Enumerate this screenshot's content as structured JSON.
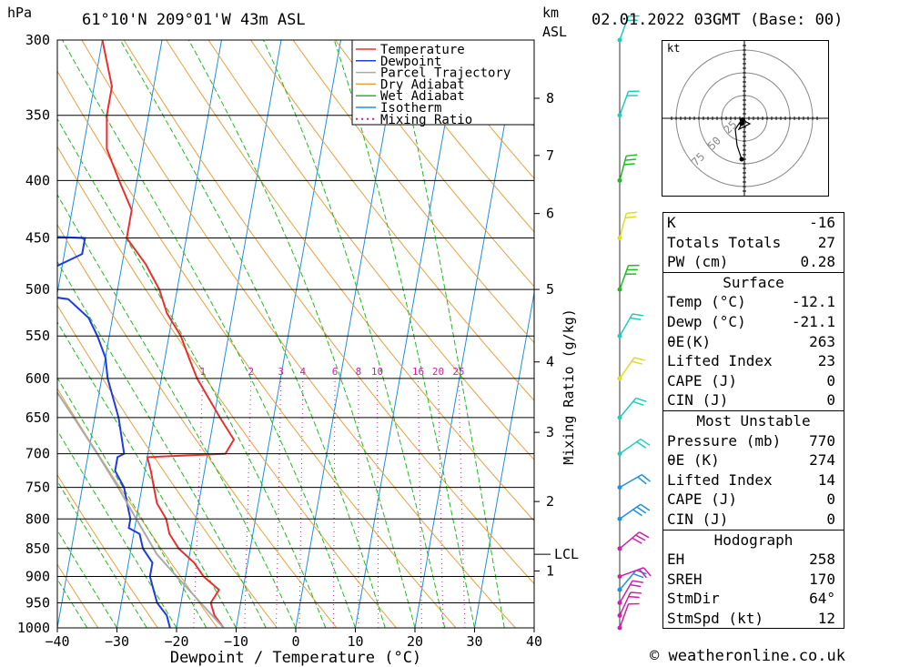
{
  "header": {
    "hpa_label": "hPa",
    "location": "61°10'N  209°01'W  43m  ASL",
    "km_label": "km",
    "asl_label": "ASL",
    "datetime": "02.01.2022  03GMT  (Base: 00)"
  },
  "footer": {
    "copyright": "© weatheronline.co.uk"
  },
  "hodograph": {
    "unit_label": "kt",
    "ring_labels": [
      "25",
      "50",
      "75"
    ]
  },
  "indices": {
    "top": [
      {
        "label": "K",
        "value": "-16"
      },
      {
        "label": "Totals Totals",
        "value": "27"
      },
      {
        "label": "PW (cm)",
        "value": "0.28"
      }
    ],
    "surface": {
      "title": "Surface",
      "rows": [
        {
          "label": "Temp (°C)",
          "value": "-12.1"
        },
        {
          "label": "Dewp (°C)",
          "value": "-21.1"
        },
        {
          "label": "θE(K)",
          "value": "263"
        },
        {
          "label": "Lifted Index",
          "value": "23"
        },
        {
          "label": "CAPE (J)",
          "value": "0"
        },
        {
          "label": "CIN (J)",
          "value": "0"
        }
      ]
    },
    "unstable": {
      "title": "Most Unstable",
      "rows": [
        {
          "label": "Pressure (mb)",
          "value": "770"
        },
        {
          "label": "θE (K)",
          "value": "274"
        },
        {
          "label": "Lifted Index",
          "value": "14"
        },
        {
          "label": "CAPE (J)",
          "value": "0"
        },
        {
          "label": "CIN (J)",
          "value": "0"
        }
      ]
    },
    "hodo": {
      "title": "Hodograph",
      "rows": [
        {
          "label": "EH",
          "value": "258"
        },
        {
          "label": "SREH",
          "value": "170"
        },
        {
          "label": "StmDir",
          "value": "64°"
        },
        {
          "label": "StmSpd (kt)",
          "value": "12"
        }
      ]
    }
  },
  "chart_data": {
    "type": "line",
    "xlabel": "Dewpoint / Temperature (°C)",
    "ylabel": "Mixing Ratio (g/kg)",
    "xlim": [
      -40,
      40
    ],
    "pressure_range_hpa": [
      300,
      1000
    ],
    "log_pressure_axis": true,
    "skew": true,
    "x_ticks": [
      "-40",
      "-30",
      "-20",
      "-10",
      "0",
      "10",
      "20",
      "30",
      "40"
    ],
    "pressure_ticks": [
      300,
      350,
      400,
      450,
      500,
      550,
      600,
      650,
      700,
      750,
      800,
      850,
      900,
      950,
      1000
    ],
    "height_ticks_km": [
      {
        "label": "8",
        "p": 338
      },
      {
        "label": "7",
        "p": 380
      },
      {
        "label": "6",
        "p": 428
      },
      {
        "label": "5",
        "p": 500
      },
      {
        "label": "4",
        "p": 580
      },
      {
        "label": "3",
        "p": 670
      },
      {
        "label": "2",
        "p": 772
      },
      {
        "label": "1",
        "p": 890
      }
    ],
    "lcl": {
      "label": "LCL",
      "p": 860
    },
    "mixing_ratio_labels": [
      "1",
      "2",
      "3",
      "4",
      "6",
      "8",
      "10",
      "16",
      "20",
      "25"
    ],
    "legend": {
      "position": "top-right",
      "entries": [
        {
          "name": "Temperature",
          "color": "#e8312f",
          "style": "solid"
        },
        {
          "name": "Dewpoint",
          "color": "#1e3ce0",
          "style": "solid"
        },
        {
          "name": "Parcel Trajectory",
          "color": "#aaaaaa",
          "style": "solid"
        },
        {
          "name": "Dry Adiabat",
          "color": "#e8a040",
          "style": "solid"
        },
        {
          "name": "Wet Adiabat",
          "color": "#22bb22",
          "style": "solid"
        },
        {
          "name": "Isotherm",
          "color": "#1e90e0",
          "style": "solid"
        },
        {
          "name": "Mixing Ratio",
          "color": "#cc22aa",
          "style": "dotted"
        }
      ]
    },
    "series": [
      {
        "name": "Temperature",
        "color": "#e8312f",
        "points": [
          [
            1000,
            -12.1
          ],
          [
            975,
            -14
          ],
          [
            950,
            -15
          ],
          [
            925,
            -14
          ],
          [
            900,
            -17
          ],
          [
            875,
            -19
          ],
          [
            850,
            -22
          ],
          [
            825,
            -24
          ],
          [
            800,
            -25
          ],
          [
            775,
            -27
          ],
          [
            750,
            -28
          ],
          [
            725,
            -29
          ],
          [
            705,
            -30
          ],
          [
            700,
            -17
          ],
          [
            680,
            -16
          ],
          [
            650,
            -19
          ],
          [
            600,
            -24
          ],
          [
            575,
            -26
          ],
          [
            550,
            -28
          ],
          [
            525,
            -31
          ],
          [
            500,
            -33
          ],
          [
            475,
            -36
          ],
          [
            450,
            -40
          ],
          [
            425,
            -40
          ],
          [
            400,
            -43
          ],
          [
            375,
            -46
          ],
          [
            350,
            -47
          ],
          [
            330,
            -47
          ],
          [
            300,
            -50
          ]
        ]
      },
      {
        "name": "Dewpoint",
        "color": "#1e3ce0",
        "points": [
          [
            1000,
            -21.1
          ],
          [
            975,
            -22
          ],
          [
            950,
            -24
          ],
          [
            925,
            -25
          ],
          [
            900,
            -26
          ],
          [
            875,
            -26
          ],
          [
            850,
            -28
          ],
          [
            825,
            -29
          ],
          [
            815,
            -31
          ],
          [
            800,
            -31
          ],
          [
            775,
            -32
          ],
          [
            750,
            -33
          ],
          [
            725,
            -35
          ],
          [
            705,
            -35
          ],
          [
            700,
            -34
          ],
          [
            650,
            -36
          ],
          [
            600,
            -39
          ],
          [
            575,
            -40
          ],
          [
            550,
            -42
          ],
          [
            530,
            -44
          ],
          [
            510,
            -48
          ],
          [
            500,
            -60
          ],
          [
            480,
            -52
          ],
          [
            465,
            -47
          ],
          [
            450,
            -47
          ],
          [
            445,
            -70
          ],
          [
            400,
            -70
          ],
          [
            375,
            -68
          ],
          [
            350,
            -72
          ],
          [
            320,
            -72
          ],
          [
            300,
            -72
          ]
        ]
      },
      {
        "name": "Parcel Trajectory",
        "color": "#aaaaaa",
        "points": [
          [
            1000,
            -12.1
          ],
          [
            950,
            -16.7
          ],
          [
            900,
            -21.5
          ],
          [
            860,
            -25.5
          ],
          [
            800,
            -30
          ],
          [
            750,
            -34
          ],
          [
            700,
            -38.5
          ],
          [
            650,
            -43.5
          ],
          [
            600,
            -49
          ],
          [
            550,
            -55
          ],
          [
            500,
            -61.5
          ],
          [
            450,
            -69
          ]
        ]
      }
    ],
    "wind_profile": [
      {
        "p": 1000,
        "dir": 20,
        "spd": 10,
        "color": "#cc22aa"
      },
      {
        "p": 975,
        "dir": 25,
        "spd": 15,
        "color": "#cc22aa"
      },
      {
        "p": 950,
        "dir": 30,
        "spd": 20,
        "color": "#cc22aa"
      },
      {
        "p": 925,
        "dir": 40,
        "spd": 20,
        "color": "#1e90e0"
      },
      {
        "p": 900,
        "dir": 70,
        "spd": 20,
        "color": "#cc22aa"
      },
      {
        "p": 850,
        "dir": 50,
        "spd": 30,
        "color": "#cc22aa"
      },
      {
        "p": 800,
        "dir": 55,
        "spd": 25,
        "color": "#1e90e0"
      },
      {
        "p": 750,
        "dir": 60,
        "spd": 20,
        "color": "#1e90e0"
      },
      {
        "p": 700,
        "dir": 55,
        "spd": 20,
        "color": "#22ccbb"
      },
      {
        "p": 650,
        "dir": 40,
        "spd": 20,
        "color": "#22ccbb"
      },
      {
        "p": 600,
        "dir": 35,
        "spd": 20,
        "color": "#dddd22"
      },
      {
        "p": 550,
        "dir": 30,
        "spd": 15,
        "color": "#22ccbb"
      },
      {
        "p": 500,
        "dir": 20,
        "spd": 25,
        "color": "#22bb22"
      },
      {
        "p": 450,
        "dir": 15,
        "spd": 20,
        "color": "#dddd22"
      },
      {
        "p": 400,
        "dir": 15,
        "spd": 25,
        "color": "#22bb22"
      },
      {
        "p": 350,
        "dir": 20,
        "spd": 15,
        "color": "#22ccbb"
      },
      {
        "p": 300,
        "dir": 20,
        "spd": 15,
        "color": "#22ccbb"
      }
    ],
    "hodograph_path_kt": [
      [
        -3,
        -45
      ],
      [
        -8,
        -30
      ],
      [
        -10,
        -12
      ],
      [
        -2,
        0
      ],
      [
        2,
        -4
      ],
      [
        6,
        -6
      ],
      [
        -6,
        -12
      ],
      [
        -3,
        -6
      ]
    ]
  }
}
